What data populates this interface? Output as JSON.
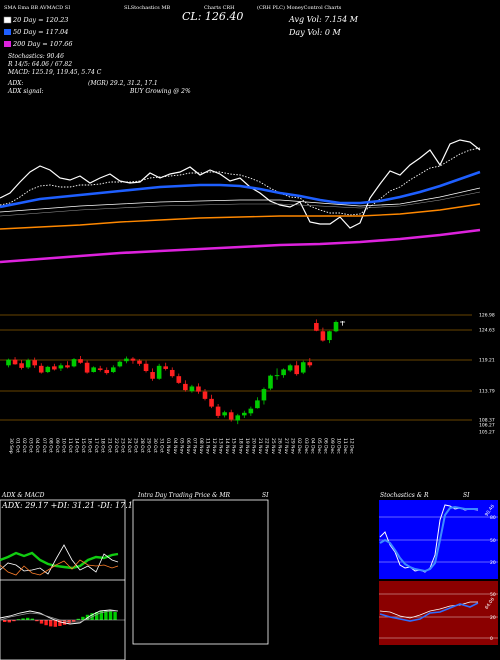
{
  "header": {
    "top_line": "(CRH PLC) MoneyControl Charts",
    "title_part1": "SMA Ema BB AVMACD SI",
    "title_part2": "SLStochastics MB",
    "title_part3": "Charts CRH",
    "cl_label": "CL: 126.40",
    "avg_vol": "Avg Vol: 7.154  M",
    "day_vol": "Day Vol: 0   M",
    "sma20": "20  Day = 120.23",
    "sma50": "50  Day = 117.04",
    "sma200": "200  Day = 107.66",
    "stoch": "Stochastics: 90.46",
    "r_line": "R 14/5: 64.06 / 67.82",
    "macd": "MACD: 125.19, 119.45, 5.74  C",
    "adx": "ADX:",
    "adx_values": "(MGR) 29.2,  31.2,  17.1",
    "adx_signal": "ADX signal:",
    "buy_signal": "BUY Growing @ 2%"
  },
  "colors": {
    "background": "#000000",
    "bullish": "#00cc00",
    "bearish": "#ff2020",
    "sma20": "#ffffff",
    "sma50": "#1e5fff",
    "sma100": "#ffffff",
    "sma150": "#ff8800",
    "sma200": "#dd22dd",
    "ref_lines": "#8b5a00"
  },
  "bottom_panels": {
    "adx_title": "ADX  & MACD",
    "adx_values": "ADX: 29.17  +DI: 31.21  -DI: 17.11",
    "intra_title": "Intra Day Trading Price  & MR",
    "intra_si": "SI",
    "stoch_title": "Stochastics & R",
    "stoch_si": "SI",
    "stoch_ticks": [
      "80",
      "50",
      "20"
    ],
    "r_ticks": [
      "50",
      "20",
      "0"
    ],
    "stoch_marker": "90.46",
    "r_marker": "64.06"
  },
  "chart_data": {
    "type": "candlestick",
    "price_levels": [
      "126.98",
      "124.63",
      "119.21",
      "113.79",
      "108.37",
      "106.27",
      "105.27"
    ],
    "dates": [
      "30 Sep",
      "01 Oct",
      "02 Oct",
      "03 Oct",
      "04 Oct",
      "07 Oct",
      "08 Oct",
      "09 Oct",
      "10 Oct",
      "11 Oct",
      "14 Oct",
      "15 Oct",
      "16 Oct",
      "17 Oct",
      "18 Oct",
      "21 Oct",
      "22 Oct",
      "23 Oct",
      "24 Oct",
      "25 Oct",
      "28 Oct",
      "29 Oct",
      "30 Oct",
      "31 Oct",
      "01 Nov",
      "04 Nov",
      "05 Nov",
      "06 Nov",
      "07 Nov",
      "08 Nov",
      "11 Nov",
      "12 Nov",
      "13 Nov",
      "14 Nov",
      "15 Nov",
      "18 Nov",
      "19 Nov",
      "20 Nov",
      "21 Nov",
      "22 Nov",
      "25 Nov",
      "26 Nov",
      "27 Nov",
      "29 Nov",
      "02 Dec",
      "03 Dec",
      "04 Dec",
      "05 Dec",
      "06 Dec",
      "09 Dec",
      "10 Dec",
      "11 Dec",
      "12 Dec"
    ]
  }
}
